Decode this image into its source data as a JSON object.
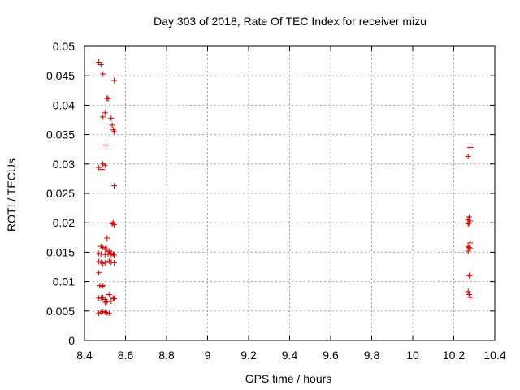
{
  "chart_data": {
    "type": "scatter",
    "title": "Day 303 of 2018, Rate Of TEC Index for receiver mizu",
    "xlabel": "GPS time / hours",
    "ylabel": "ROTI / TECUs",
    "xlim": [
      8.4,
      10.4
    ],
    "ylim": [
      0,
      0.05
    ],
    "xticks": [
      "8.4",
      "8.6",
      "8.8",
      "9",
      "9.2",
      "9.4",
      "9.6",
      "9.8",
      "10",
      "10.2",
      "10.4"
    ],
    "yticks": [
      "0",
      "0.005",
      "0.01",
      "0.015",
      "0.02",
      "0.025",
      "0.03",
      "0.035",
      "0.04",
      "0.045",
      "0.05"
    ],
    "grid": true,
    "marker": "+",
    "color": "#cc0000",
    "series": [
      {
        "name": "ROTI",
        "x": [
          8.47,
          8.48,
          8.49,
          8.545,
          8.51,
          8.515,
          8.5,
          8.49,
          8.53,
          8.535,
          8.54,
          8.545,
          8.505,
          8.49,
          8.5,
          8.47,
          8.485,
          8.545,
          8.54,
          8.535,
          8.545,
          8.51,
          8.48,
          8.49,
          8.5,
          8.51,
          8.52,
          8.53,
          8.47,
          8.48,
          8.5,
          8.515,
          8.53,
          8.54,
          8.545,
          8.47,
          8.48,
          8.49,
          8.5,
          8.52,
          8.53,
          8.545,
          8.47,
          8.475,
          8.485,
          8.49,
          8.52,
          8.47,
          8.48,
          8.49,
          8.5,
          8.54,
          8.545,
          8.5,
          8.51,
          8.53,
          8.47,
          8.48,
          8.49,
          8.5,
          8.51,
          8.52,
          10.28,
          10.27,
          10.275,
          10.27,
          10.28,
          10.275,
          10.27,
          10.28,
          10.27,
          10.275,
          10.28,
          10.27,
          10.275,
          10.28,
          10.27,
          10.275,
          10.28
        ],
        "y": [
          0.0473,
          0.0469,
          0.0453,
          0.0442,
          0.0412,
          0.0411,
          0.0387,
          0.038,
          0.0378,
          0.0366,
          0.0358,
          0.0355,
          0.0332,
          0.03,
          0.0298,
          0.0294,
          0.0291,
          0.0263,
          0.02,
          0.0198,
          0.0197,
          0.0174,
          0.016,
          0.0158,
          0.0156,
          0.0155,
          0.0152,
          0.0149,
          0.0148,
          0.0147,
          0.0146,
          0.0147,
          0.0146,
          0.0147,
          0.0145,
          0.0134,
          0.0133,
          0.0131,
          0.0132,
          0.0135,
          0.0133,
          0.0132,
          0.0115,
          0.0093,
          0.0092,
          0.0093,
          0.0078,
          0.0072,
          0.0072,
          0.0073,
          0.007,
          0.0072,
          0.0071,
          0.0065,
          0.0066,
          0.0067,
          0.0046,
          0.0048,
          0.0049,
          0.0048,
          0.0047,
          0.0046,
          0.0328,
          0.0313,
          0.021,
          0.0205,
          0.0203,
          0.02,
          0.0198,
          0.0166,
          0.016,
          0.0158,
          0.0156,
          0.0152,
          0.011,
          0.0111,
          0.0083,
          0.0078,
          0.0073
        ]
      }
    ]
  }
}
